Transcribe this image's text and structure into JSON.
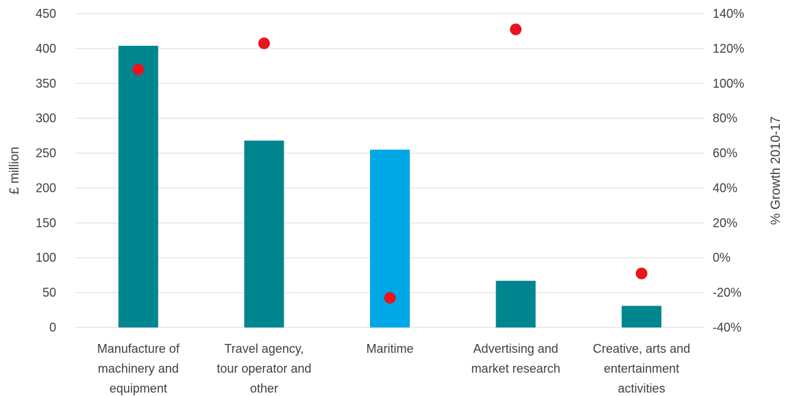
{
  "chart_data": {
    "type": "bar",
    "categories": [
      [
        "Manufacture of",
        "machinery and",
        "equipment"
      ],
      [
        "Travel agency,",
        "tour operator and",
        "other"
      ],
      [
        "Maritime"
      ],
      [
        "Advertising and",
        "market research"
      ],
      [
        "Creative, arts and",
        "entertainment",
        "activities"
      ]
    ],
    "series": [
      {
        "type": "bar",
        "axis": "left",
        "values": [
          404,
          268,
          255,
          67,
          31
        ],
        "colors": [
          "#00868F",
          "#00868F",
          "#00A8E8",
          "#00868F",
          "#00868F"
        ]
      },
      {
        "type": "scatter",
        "axis": "right",
        "values": [
          108,
          123,
          -23,
          131,
          -9
        ],
        "color": "#E8141E"
      }
    ],
    "ylabel": "£ million",
    "ylim": [
      0,
      450
    ],
    "yticks": [
      "0",
      "50",
      "100",
      "150",
      "200",
      "250",
      "300",
      "350",
      "400",
      "450"
    ],
    "y2label": "% Growth 2010-17",
    "y2lim": [
      -40,
      140
    ],
    "y2ticks": [
      "-40%",
      "-20%",
      "0%",
      "20%",
      "40%",
      "60%",
      "80%",
      "100%",
      "120%",
      "140%"
    ],
    "grid": true,
    "legend": "none"
  }
}
